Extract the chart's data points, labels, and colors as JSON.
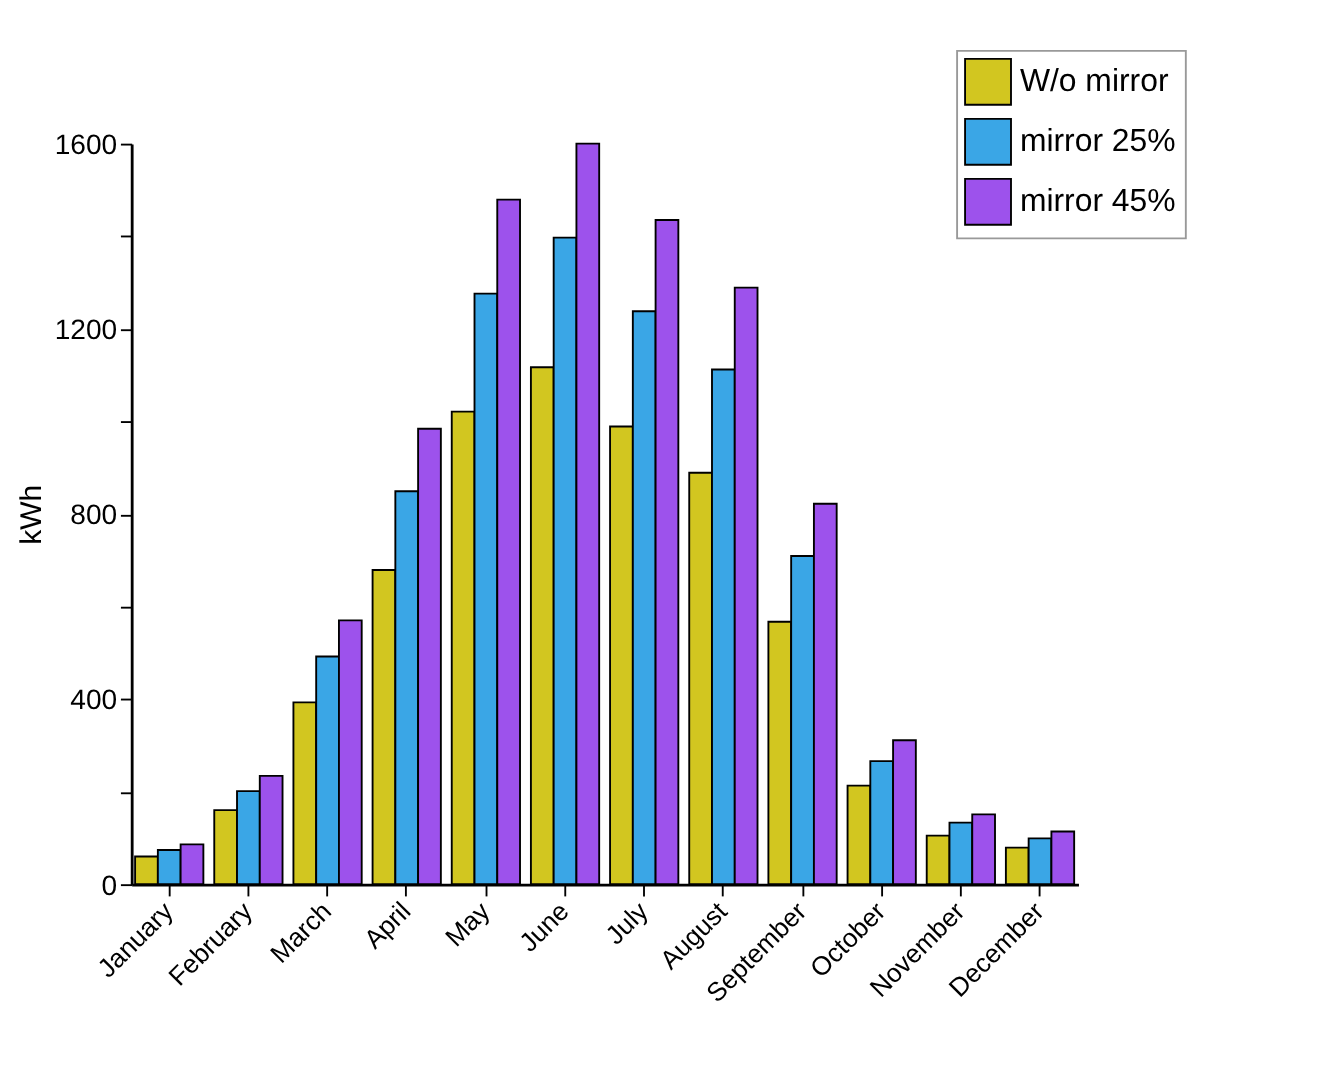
{
  "chart_data": {
    "type": "bar",
    "ylabel": "kWh",
    "categories": [
      "January",
      "February",
      "March",
      "April",
      "May",
      "June",
      "July",
      "August",
      "September",
      "October",
      "November",
      "December"
    ],
    "series": [
      {
        "name": "W/o mirror",
        "color": "#d2c620",
        "values": [
          60,
          160,
          393,
          679,
          1021,
          1117,
          989,
          889,
          567,
          213,
          105,
          79
        ]
      },
      {
        "name": "mirror 25%",
        "color": "#3aa6e6",
        "values": [
          74,
          201,
          492,
          849,
          1276,
          1397,
          1238,
          1112,
          709,
          266,
          133,
          99
        ]
      },
      {
        "name": "mirror 45%",
        "color": "#9d52ec",
        "values": [
          86,
          234,
          570,
          984,
          1479,
          1600,
          1435,
          1289,
          822,
          311,
          151,
          114
        ]
      }
    ],
    "ylim": [
      0,
      1600
    ],
    "yticks": [
      0,
      {
        "value": 200,
        "label": null
      },
      400,
      {
        "value": 600,
        "label": null
      },
      800,
      {
        "value": 1000,
        "label": null
      },
      1200,
      {
        "value": 1400,
        "label": null
      },
      1600
    ],
    "legend": "top right",
    "grid": false
  }
}
